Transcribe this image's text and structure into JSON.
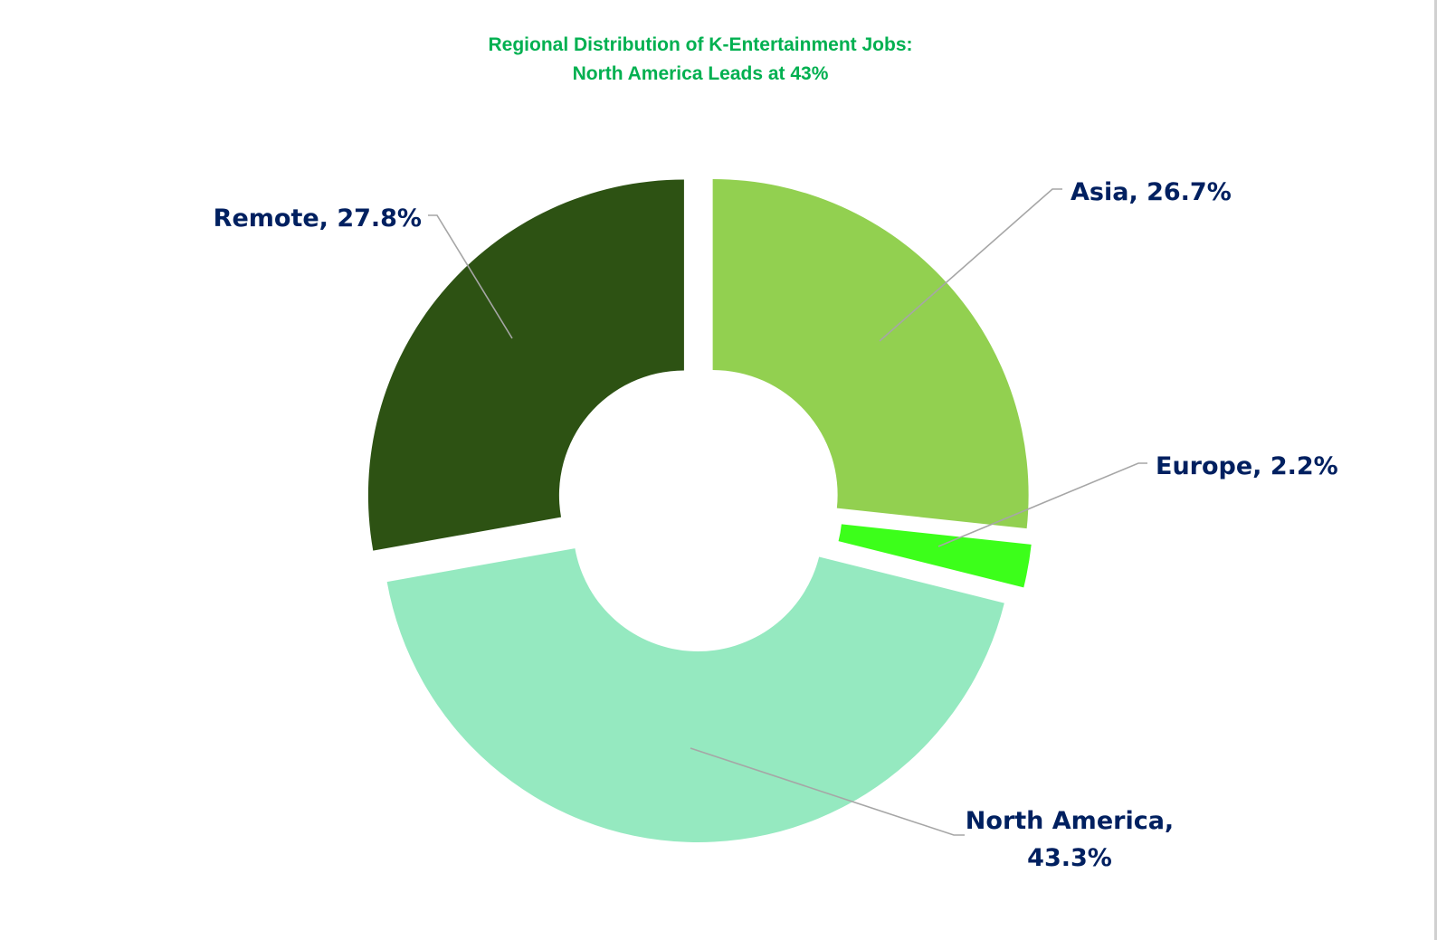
{
  "chart_data": {
    "type": "pie",
    "variant": "exploded-donut",
    "title": "Regional Distribution of K-Entertainment Jobs: North America Leads at 43%",
    "title_lines": [
      "Regional Distribution of K-Entertainment Jobs:",
      "North America Leads at 43%"
    ],
    "categories": [
      "Asia",
      "Europe",
      "North America",
      "Remote"
    ],
    "values": [
      26.7,
      2.2,
      43.3,
      27.8
    ],
    "unit": "%",
    "colors": [
      "#92d050",
      "#3cff1a",
      "#95e9c0",
      "#2d5213"
    ],
    "labels": [
      {
        "category": "Asia",
        "text": "Asia, 26.7%"
      },
      {
        "category": "Europe",
        "text": "Europe, 2.2%"
      },
      {
        "category": "North America",
        "text_line1": "North America,",
        "text_line2": "43.3%"
      },
      {
        "category": "Remote",
        "text": "Remote, 27.8%"
      }
    ],
    "start_angle_deg": 0,
    "direction": "clockwise",
    "legend": "none",
    "title_color": "#00b050",
    "label_color": "#002060"
  }
}
